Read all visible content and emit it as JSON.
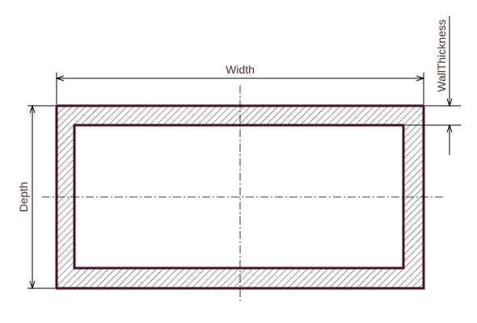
{
  "labels": {
    "width": "Width",
    "depth": "Depth",
    "wall_thickness": "WallThickness"
  },
  "colors": {
    "outline": "#4a0f2a",
    "label_text": "#5a2a2a",
    "hatch": "#000000",
    "dimension_lines": "#000000"
  }
}
